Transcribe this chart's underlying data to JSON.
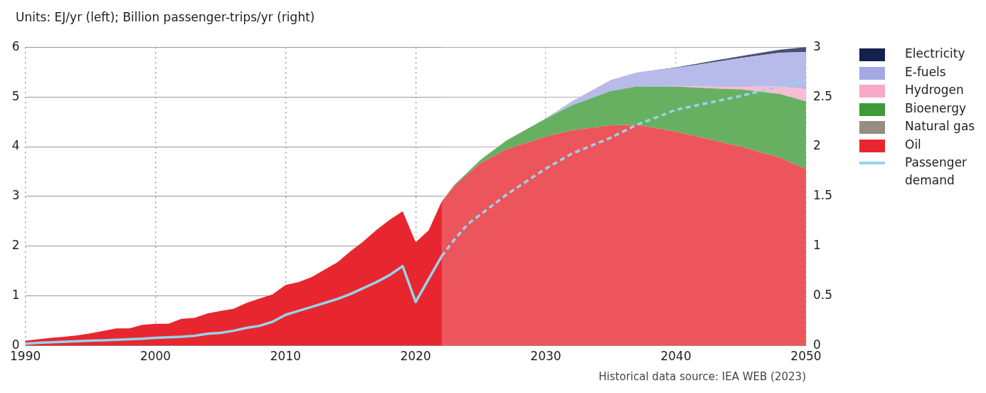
{
  "chart_data": {
    "type": "area",
    "title": "Units: EJ/yr (left); Billion passenger-trips/yr (right)",
    "annotations": [
      "Historical data source: IEA WEB (2023)"
    ],
    "x": [
      1990,
      1991,
      1992,
      1993,
      1994,
      1995,
      1996,
      1997,
      1998,
      1999,
      2000,
      2001,
      2002,
      2003,
      2004,
      2005,
      2006,
      2007,
      2008,
      2009,
      2010,
      2011,
      2012,
      2013,
      2014,
      2015,
      2016,
      2017,
      2018,
      2019,
      2020,
      2021,
      2022,
      2023,
      2024,
      2025,
      2027,
      2030,
      2032,
      2035,
      2037,
      2040,
      2043,
      2045,
      2048,
      2050
    ],
    "stacked": true,
    "series": [
      {
        "name": "Oil",
        "color": "#e8262f",
        "values": [
          0.1,
          0.13,
          0.16,
          0.18,
          0.21,
          0.25,
          0.3,
          0.35,
          0.35,
          0.42,
          0.44,
          0.44,
          0.54,
          0.56,
          0.65,
          0.7,
          0.74,
          0.86,
          0.95,
          1.03,
          1.22,
          1.28,
          1.38,
          1.53,
          1.68,
          1.9,
          2.1,
          2.33,
          2.53,
          2.7,
          2.08,
          2.32,
          2.9,
          3.22,
          3.45,
          3.67,
          3.95,
          4.2,
          4.33,
          4.43,
          4.44,
          4.3,
          4.12,
          4.0,
          3.78,
          3.55
        ]
      },
      {
        "name": "Natural gas",
        "color": "#968c83",
        "values": [
          null,
          null,
          null,
          null,
          null,
          null,
          null,
          null,
          null,
          null,
          null,
          null,
          null,
          null,
          null,
          null,
          null,
          null,
          null,
          null,
          null,
          null,
          null,
          null,
          null,
          null,
          null,
          null,
          null,
          null,
          null,
          null,
          null,
          null,
          null,
          null,
          null,
          null,
          null,
          null,
          null,
          null,
          null,
          null,
          null,
          null
        ]
      },
      {
        "name": "Bioenergy",
        "color": "#3d9a37",
        "values": [
          null,
          null,
          null,
          null,
          null,
          null,
          null,
          null,
          null,
          null,
          null,
          null,
          null,
          null,
          null,
          null,
          null,
          null,
          null,
          null,
          null,
          null,
          null,
          null,
          null,
          null,
          null,
          null,
          null,
          null,
          null,
          null,
          0,
          0.02,
          0.04,
          0.07,
          0.18,
          0.36,
          0.5,
          0.69,
          0.77,
          0.91,
          1.05,
          1.15,
          1.28,
          1.36
        ]
      },
      {
        "name": "Hydrogen",
        "color": "#f9a8c8",
        "values": [
          null,
          null,
          null,
          null,
          null,
          null,
          null,
          null,
          null,
          null,
          null,
          null,
          null,
          null,
          null,
          null,
          null,
          null,
          null,
          null,
          null,
          null,
          null,
          null,
          null,
          null,
          null,
          null,
          null,
          null,
          null,
          null,
          null,
          null,
          null,
          null,
          null,
          null,
          null,
          null,
          0,
          0.01,
          0.03,
          0.05,
          0.15,
          0.24
        ]
      },
      {
        "name": "E-fuels",
        "color": "#a4a8e3",
        "values": [
          null,
          null,
          null,
          null,
          null,
          null,
          null,
          null,
          null,
          null,
          null,
          null,
          null,
          null,
          null,
          null,
          null,
          null,
          null,
          null,
          null,
          null,
          null,
          null,
          null,
          null,
          null,
          null,
          null,
          null,
          null,
          null,
          null,
          null,
          null,
          null,
          0,
          0.01,
          0.08,
          0.22,
          0.28,
          0.36,
          0.5,
          0.58,
          0.68,
          0.75
        ]
      },
      {
        "name": "Electricity",
        "color": "#13214e",
        "values": [
          null,
          null,
          null,
          null,
          null,
          null,
          null,
          null,
          null,
          null,
          null,
          null,
          null,
          null,
          null,
          null,
          null,
          null,
          null,
          null,
          null,
          null,
          null,
          null,
          null,
          null,
          null,
          null,
          null,
          null,
          null,
          null,
          null,
          null,
          null,
          null,
          null,
          null,
          null,
          null,
          0,
          0.01,
          0.03,
          0.04,
          0.06,
          0.1
        ]
      },
      {
        "name": "Passenger demand",
        "type": "line",
        "axis": "y2",
        "line_style": "solid",
        "color": "#94d5ea",
        "x": [
          1990,
          1991,
          1992,
          1993,
          1994,
          1995,
          1996,
          1997,
          1998,
          1999,
          2000,
          2001,
          2002,
          2003,
          2004,
          2005,
          2006,
          2007,
          2008,
          2009,
          2010,
          2011,
          2012,
          2013,
          2014,
          2015,
          2016,
          2017,
          2018,
          2019,
          2020,
          2021,
          2022
        ],
        "values": [
          0.02,
          0.03,
          0.035,
          0.04,
          0.045,
          0.05,
          0.055,
          0.06,
          0.065,
          0.07,
          0.08,
          0.085,
          0.09,
          0.1,
          0.12,
          0.13,
          0.15,
          0.18,
          0.2,
          0.24,
          0.31,
          0.35,
          0.39,
          0.43,
          0.47,
          0.52,
          0.58,
          0.64,
          0.71,
          0.8,
          0.44,
          0.67,
          0.9
        ]
      },
      {
        "type": "line",
        "axis": "y2",
        "line_style": "dashed",
        "color": "#94d5ea",
        "x": [
          2022,
          2023,
          2024,
          2025,
          2027,
          2030,
          2032,
          2035,
          2037,
          2040,
          2045,
          2050
        ],
        "values": [
          0.9,
          1.07,
          1.22,
          1.32,
          1.52,
          1.78,
          1.93,
          2.09,
          2.22,
          2.37,
          2.51,
          2.67
        ]
      }
    ],
    "bands": [
      {
        "axis": "x",
        "from": 2022,
        "to": 2050,
        "color": "#ffffff"
      }
    ],
    "xlim": [
      1990,
      2050
    ],
    "xticks": [
      1990,
      2000,
      2010,
      2020,
      2030,
      2040,
      2050
    ],
    "ylim": [
      0,
      6
    ],
    "yticks": [
      0,
      1,
      2,
      3,
      4,
      5,
      6
    ],
    "y2lim": [
      0,
      3
    ],
    "y2ticks": [
      0,
      0.5,
      1,
      1.5,
      2,
      2.5,
      3
    ],
    "grid": true,
    "legend": "right",
    "marker": "none"
  }
}
